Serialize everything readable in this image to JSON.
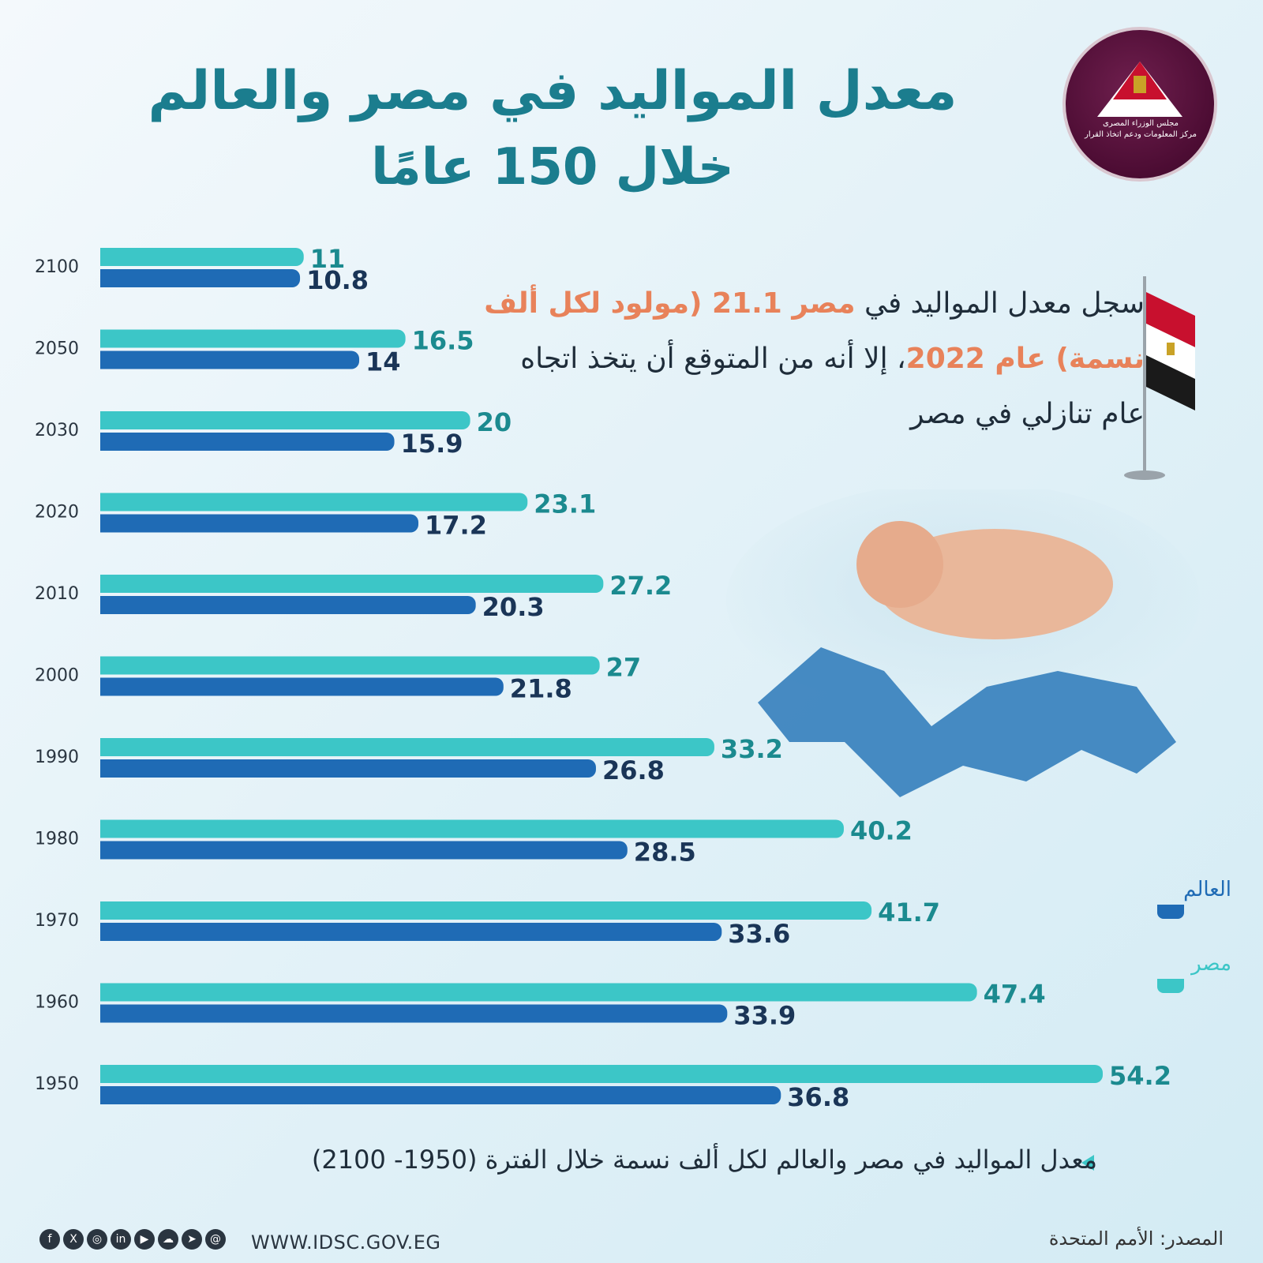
{
  "title": {
    "line1": "معدل المواليد في مصر والعالم",
    "line2": "خلال 150 عامًا"
  },
  "logo": {
    "line1": "مجلس الوزراء المصرى",
    "line2": "مركز المعلومات ودعم اتخاذ القرار"
  },
  "description": {
    "part1": "سجل معدل المواليد في ",
    "country": "مصر",
    "value": " 21.1 (مولود لكل ألف نسمة) ",
    "year_phrase": "عام 2022",
    "part2": "، إلا أنه من المتوقع أن يتخذ اتجاه عام تنازلي في مصر"
  },
  "legend": {
    "world": "العالم",
    "egypt": "مصر"
  },
  "caption": "معدل المواليد في مصر والعالم لكل ألف نسمة خلال الفترة (1950- 2100)",
  "source": "المصدر: الأمم المتحدة",
  "website": "WWW.IDSC.GOV.EG",
  "colors": {
    "egypt": "#3cc6c7",
    "world": "#1f6bb5",
    "egypt_label": "#1b8a8f",
    "world_label": "#1a3557",
    "title": "#1b7d8e",
    "accent": "#e8825a"
  },
  "chart_data": {
    "type": "bar",
    "orientation": "horizontal",
    "categories": [
      "2100",
      "2050",
      "2030",
      "2020",
      "2010",
      "2000",
      "1990",
      "1980",
      "1970",
      "1960",
      "1950"
    ],
    "series": [
      {
        "name": "مصر",
        "values": [
          11,
          16.5,
          20,
          23.1,
          27.2,
          27,
          33.2,
          40.2,
          41.7,
          47.4,
          54.2
        ]
      },
      {
        "name": "العالم",
        "values": [
          10.8,
          14,
          15.9,
          17.2,
          20.3,
          21.8,
          26.8,
          28.5,
          33.6,
          33.9,
          36.8
        ]
      }
    ],
    "xlim": [
      0,
      54.2
    ]
  }
}
